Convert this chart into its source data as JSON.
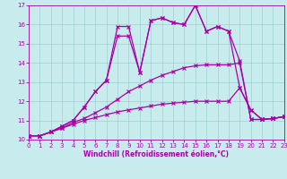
{
  "xlabel": "Windchill (Refroidissement éolien,°C)",
  "xlim": [
    0,
    23
  ],
  "ylim": [
    10,
    17
  ],
  "yticks": [
    10,
    11,
    12,
    13,
    14,
    15,
    16,
    17
  ],
  "xticks": [
    0,
    1,
    2,
    3,
    4,
    5,
    6,
    7,
    8,
    9,
    10,
    11,
    12,
    13,
    14,
    15,
    16,
    17,
    18,
    19,
    20,
    21,
    22,
    23
  ],
  "bg_color": "#c8ecee",
  "grid_color": "#9dcece",
  "line_color": "#aa00aa",
  "series1": [
    10.2,
    10.2,
    10.4,
    10.7,
    11.0,
    11.7,
    12.5,
    13.1,
    15.9,
    15.9,
    13.5,
    16.2,
    16.35,
    16.1,
    16.0,
    17.0,
    15.65,
    15.9,
    15.65,
    14.1,
    11.05,
    11.05,
    11.1,
    11.2
  ],
  "series2": [
    10.2,
    10.2,
    10.4,
    10.7,
    11.0,
    11.7,
    12.5,
    13.1,
    15.4,
    15.4,
    13.5,
    16.2,
    16.35,
    16.1,
    16.0,
    17.0,
    15.65,
    15.9,
    15.65,
    12.7,
    11.55,
    11.05,
    11.1,
    11.2
  ],
  "series3": [
    10.2,
    10.2,
    10.4,
    10.6,
    10.9,
    11.1,
    11.4,
    11.7,
    12.1,
    12.5,
    12.8,
    13.1,
    13.35,
    13.55,
    13.75,
    13.85,
    13.9,
    13.9,
    13.9,
    14.0,
    11.05,
    11.05,
    11.1,
    11.2
  ],
  "series4": [
    10.2,
    10.2,
    10.4,
    10.6,
    10.8,
    11.0,
    11.15,
    11.3,
    11.45,
    11.55,
    11.65,
    11.75,
    11.85,
    11.9,
    11.95,
    12.0,
    12.0,
    12.0,
    12.0,
    12.7,
    11.55,
    11.05,
    11.1,
    11.2
  ]
}
